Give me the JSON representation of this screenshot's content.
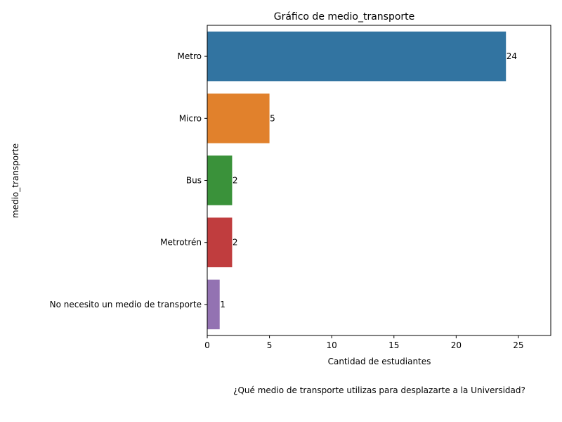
{
  "chart_data": {
    "type": "bar",
    "orientation": "horizontal",
    "title": "Gráfico de medio_transporte",
    "xlabel": "Cantidad de estudiantes",
    "ylabel": "medio_transporte",
    "categories": [
      "Metro",
      "Micro",
      "Bus",
      "Metrotrén",
      "No necesito un medio de transporte"
    ],
    "values": [
      24,
      5,
      2,
      2,
      1
    ],
    "data_labels": [
      "24",
      "5",
      "2",
      "2",
      "1"
    ],
    "colors": [
      "#3274a1",
      "#e1812c",
      "#3a923a",
      "#c03d3e",
      "#9372b2"
    ],
    "xlim": [
      0,
      27.6
    ],
    "xticks": [
      0,
      5,
      10,
      15,
      20,
      25
    ],
    "grid": false,
    "caption": "¿Qué medio de transporte utilizas para desplazarte a la Universidad?"
  }
}
